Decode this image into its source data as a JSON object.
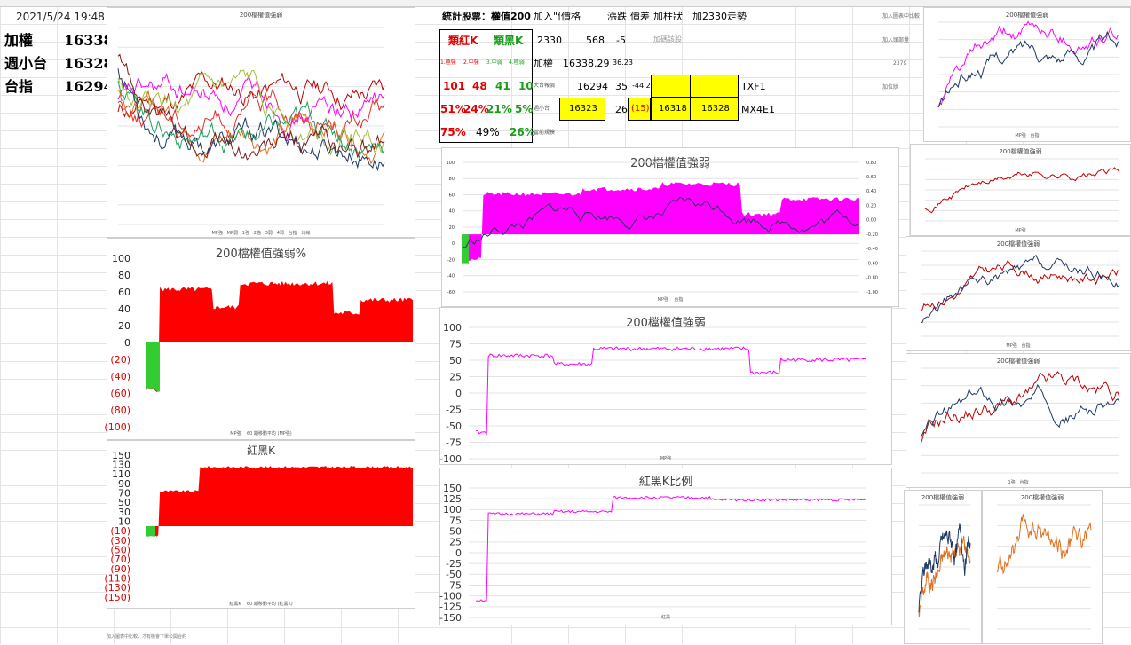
{
  "left_panel": {
    "datetime": "2021/5/24 19:48",
    "rows": [
      {
        "label": "加權",
        "value": "16338"
      },
      {
        "label": "週小台",
        "value": "16328"
      },
      {
        "label": "台指",
        "value": "16294"
      }
    ]
  },
  "stats_table": {
    "title": "統計股票：權值200",
    "red_k": "類紅K",
    "black_k": "類黑K",
    "sub_labels": [
      "1.極強",
      "2.中強",
      "3.中弱",
      "4.極弱"
    ],
    "counts": [
      "101",
      "48",
      "41",
      "10"
    ],
    "pcts": [
      "51%",
      "24%",
      "21%",
      "5%"
    ],
    "totals": [
      "75%",
      "49%",
      "26%"
    ]
  },
  "quote_panel": {
    "headers": [
      "加入\"價格",
      "價格",
      "漲跌",
      "價差",
      "加柱狀",
      "加2330走勢"
    ],
    "row1": {
      "code": "2330",
      "price": "568",
      "change": "-5",
      "note": "加碼該股"
    },
    "row2": {
      "label": "加權",
      "price": "16338.29",
      "change": "36.23"
    },
    "row3": {
      "label": "大台報價",
      "price": "16294",
      "change": "35",
      "diff": "-44.29",
      "contract": "TXF1"
    },
    "row4": {
      "label": "週小台",
      "price_a": "16323",
      "change": "26",
      "diff": "(15)",
      "price_b": "16318",
      "price_c": "16328",
      "contract": "MX4E1"
    },
    "row5_label": "當前規模"
  },
  "right_labels": [
    "加入圖表中比較",
    "加入頭部量",
    "2379",
    "加位狀"
  ],
  "footer_note": "加入圖表中比較，才有機會下單公開合約",
  "charts": {
    "top_left": {
      "title": "200檔權值強弱",
      "legend": [
        "MP強",
        "MP弱",
        "1強",
        "2強",
        "3弱",
        "4弱",
        "台指",
        "均線"
      ]
    },
    "left_mid": {
      "title": "200檔權值強弱%",
      "ylabels": [
        "100",
        "80",
        "60",
        "40",
        "20",
        "0",
        "(20)",
        "(40)",
        "(60)",
        "(80)",
        "(100)"
      ],
      "legend": [
        "MP強",
        "60 期移動平均 (MP強)"
      ]
    },
    "left_bot": {
      "title": "紅黑K",
      "ylabels": [
        "150",
        "130",
        "110",
        "90",
        "70",
        "50",
        "30",
        "10",
        "(10)",
        "(30)",
        "(50)",
        "(70)",
        "(90)",
        "(110)",
        "(130)",
        "(150)"
      ],
      "legend": [
        "紅黑K",
        "60 期移動平均 (紅黑K)"
      ]
    },
    "center_top": {
      "title": "200檔權值強弱",
      "legend": [
        "MP強",
        "台指"
      ],
      "left_ticks": [
        "100",
        "80",
        "60",
        "40",
        "20",
        "0",
        "-20",
        "-40",
        "-60"
      ],
      "right_ticks": [
        "0.80",
        "0.60",
        "0.40",
        "0.20",
        "0.00",
        "-0.20",
        "-0.40",
        "-0.60",
        "-0.80",
        "-1.00"
      ]
    },
    "center_mid": {
      "title": "200檔權值強弱",
      "ylabels": [
        "100",
        "75",
        "50",
        "25",
        "0",
        "-25",
        "-50",
        "-75",
        "-100"
      ],
      "legend": [
        "MP強"
      ]
    },
    "center_bot": {
      "title": "紅黑K比例",
      "ylabels": [
        "150",
        "125",
        "100",
        "75",
        "50",
        "25",
        "0",
        "-25",
        "-50",
        "-75",
        "-100",
        "-125",
        "-150"
      ],
      "legend": [
        "紅黑"
      ]
    },
    "r1": {
      "title": "200檔權值強弱",
      "legend": [
        "MP強",
        "台指"
      ]
    },
    "r2": {
      "title": "200檔權值強弱",
      "legend": [
        "MP強"
      ]
    },
    "r3": {
      "title": "200檔權值強弱",
      "legend": [
        "MP強",
        "台指"
      ]
    },
    "r4": {
      "title": "200檔權值強弱",
      "legend": [
        "1強",
        "台指"
      ]
    },
    "r5a": {
      "title": "200檔權值強弱"
    },
    "r5b": {
      "title": "200檔權值強弱"
    }
  },
  "colors": {
    "red": "#ff0000",
    "magenta": "#ff00ff",
    "navy": "#1f3864",
    "green": "#33cc33",
    "orange": "#e07020",
    "yellow": "#ffff00"
  }
}
